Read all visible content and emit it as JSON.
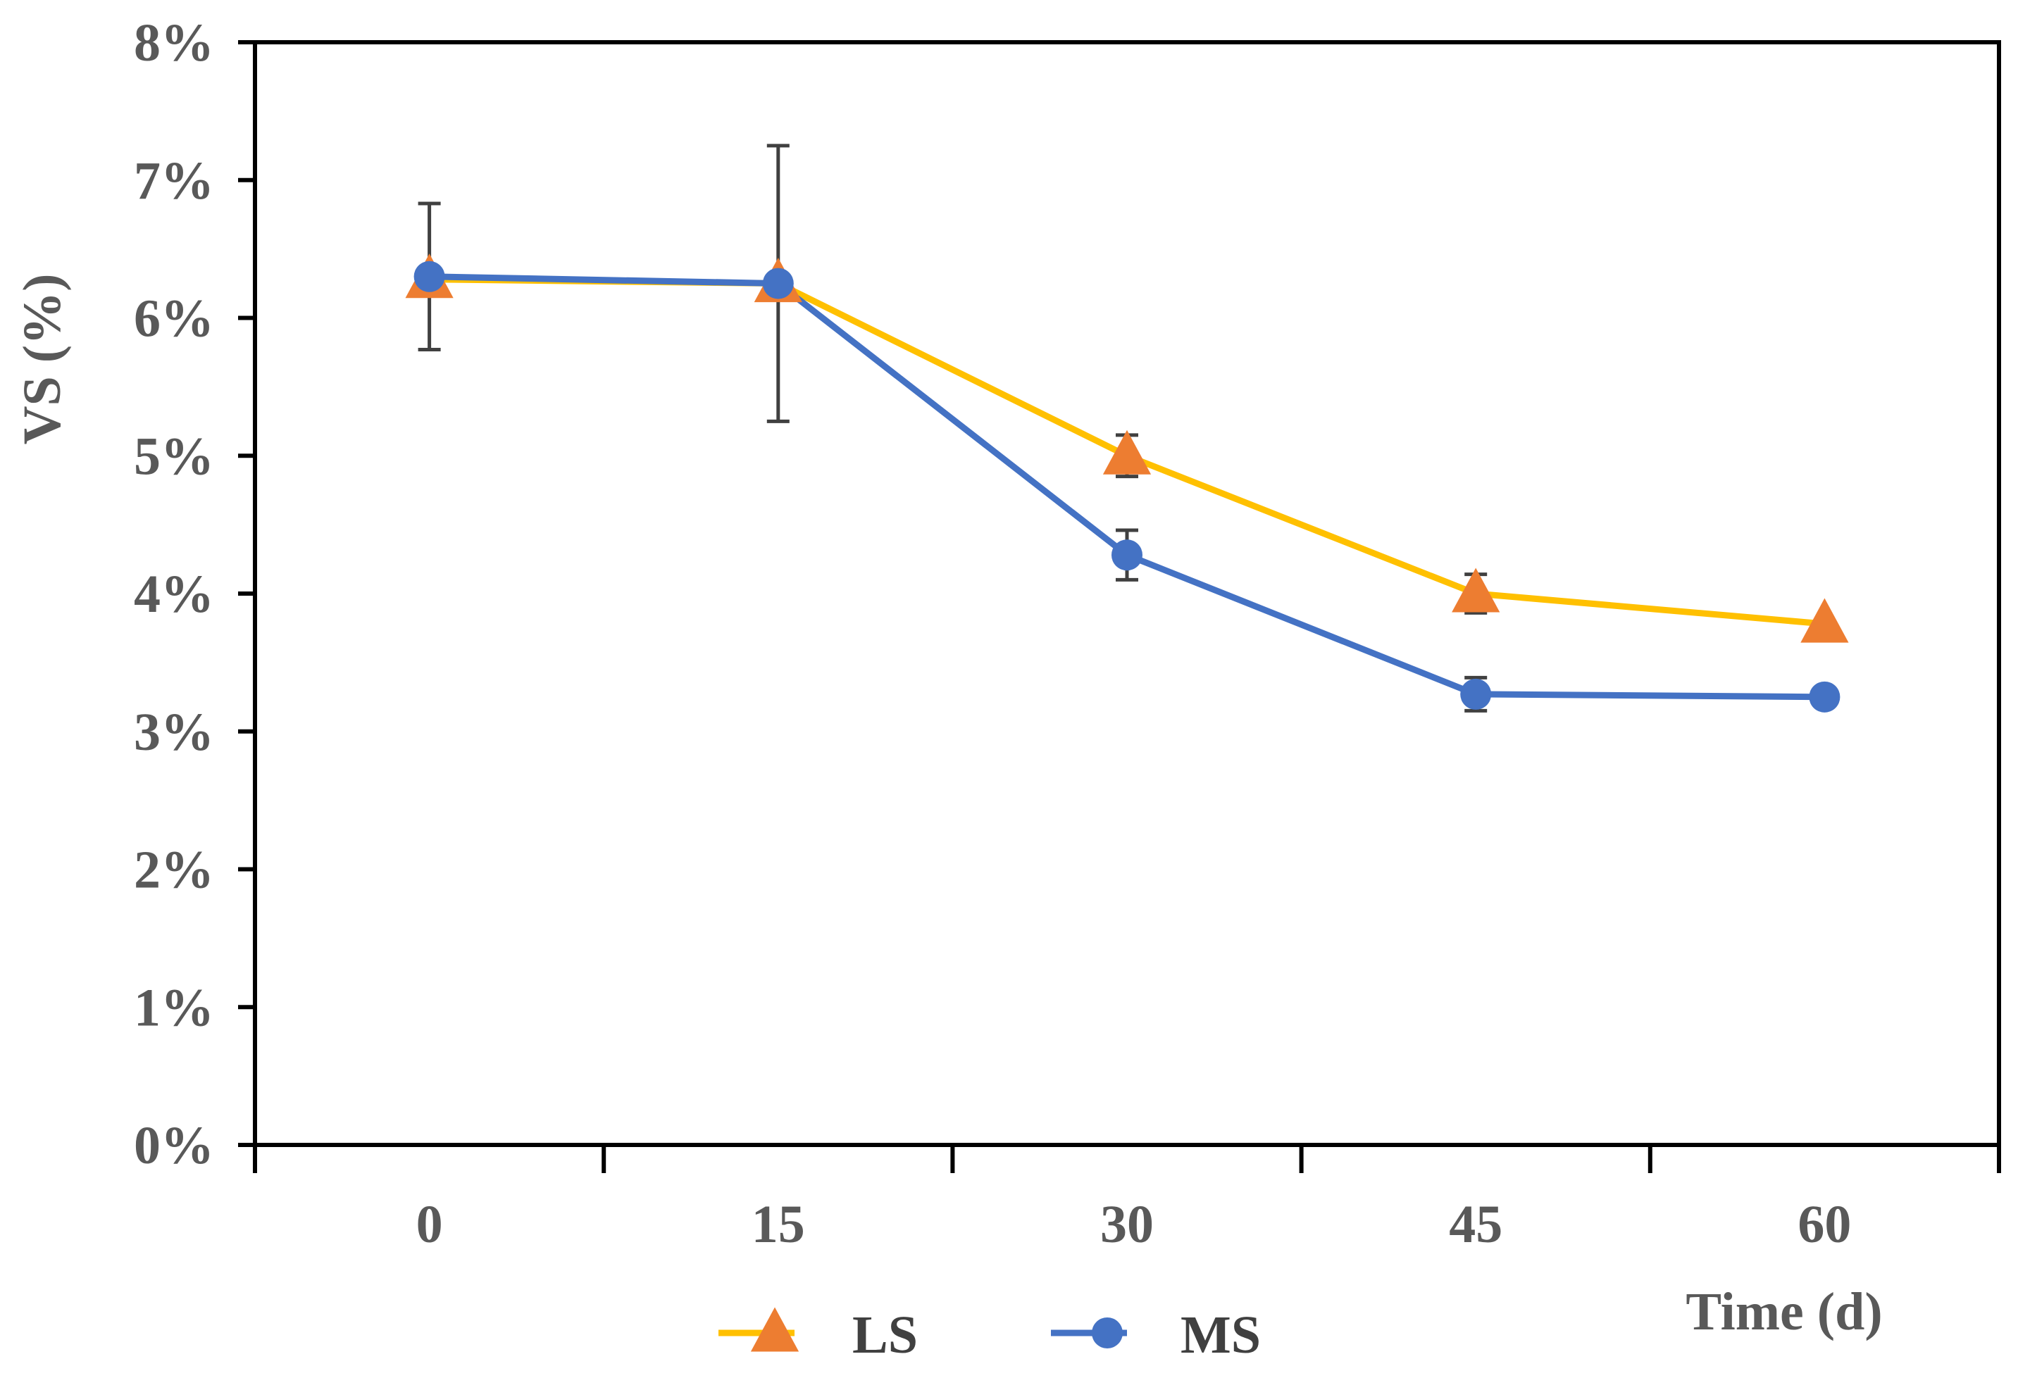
{
  "chart_data": {
    "type": "line",
    "title": "",
    "xlabel": "Time (d)",
    "ylabel": "VS (%)",
    "categories": [
      "0",
      "15",
      "30",
      "45",
      "60"
    ],
    "x": [
      0,
      15,
      30,
      45,
      60
    ],
    "ylim": [
      0,
      8
    ],
    "yticks": [
      "0%",
      "1%",
      "2%",
      "3%",
      "4%",
      "5%",
      "6%",
      "7%",
      "8%"
    ],
    "grid": false,
    "legend_position": "bottom",
    "series": [
      {
        "name": "LS",
        "marker": "triangle",
        "line_color": "#FFC000",
        "marker_color": "#ED7D31",
        "values": [
          6.28,
          6.25,
          5.0,
          4.0,
          3.78
        ],
        "errors": [
          0.0,
          0.0,
          0.15,
          0.14,
          0.0
        ]
      },
      {
        "name": "MS",
        "marker": "circle",
        "line_color": "#4472C4",
        "marker_color": "#4472C4",
        "values": [
          6.3,
          6.25,
          4.28,
          3.27,
          3.25
        ],
        "errors": [
          0.53,
          1.0,
          0.18,
          0.12,
          0.0
        ]
      }
    ]
  }
}
